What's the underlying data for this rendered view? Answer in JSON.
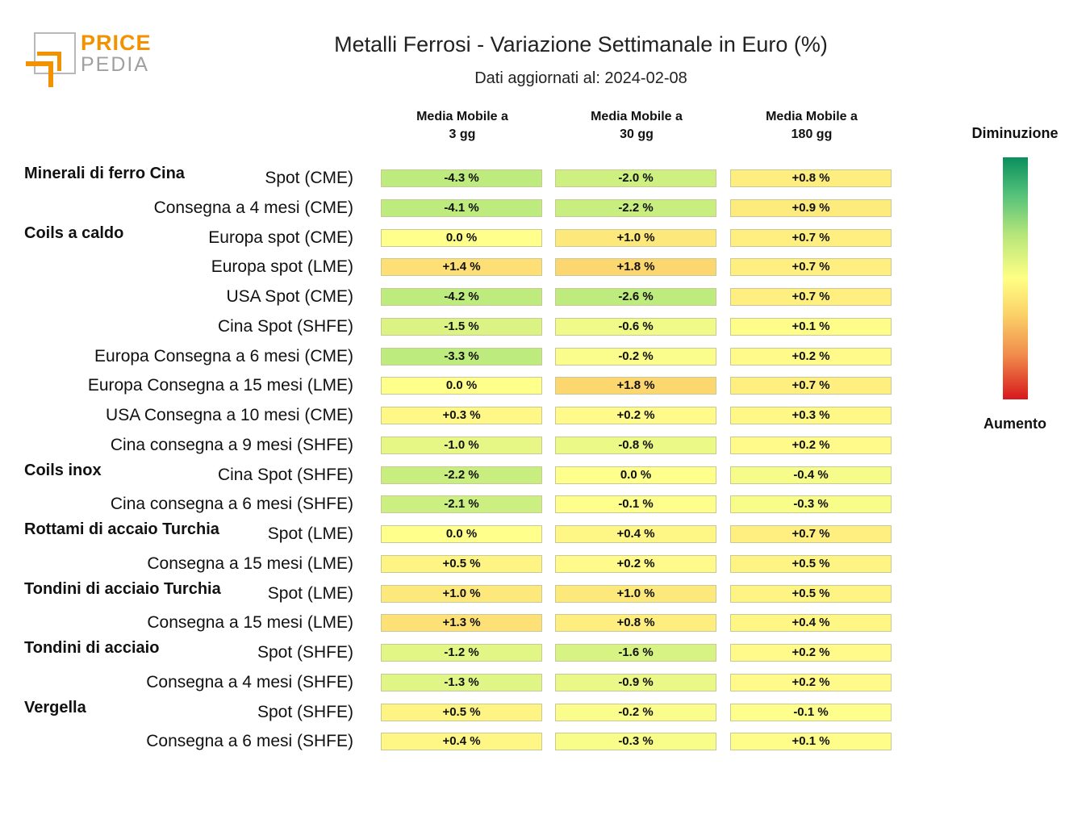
{
  "logo": {
    "price": "PRICE",
    "pedia": "PEDIA"
  },
  "title": "Metalli Ferrosi - Variazione Settimanale in Euro (%)",
  "subtitle": "Dati aggiornati al: 2024-02-08",
  "legend": {
    "top": "Diminuzione",
    "bottom": "Aumento",
    "colors": [
      "#0a8f5c",
      "#b6e67a",
      "#ffff84",
      "#f08a4b",
      "#d7191c"
    ]
  },
  "chart_data": {
    "type": "heatmap",
    "columns": [
      {
        "line1": "Media Mobile a",
        "line2": "3 gg"
      },
      {
        "line1": "Media Mobile a",
        "line2": "30 gg"
      },
      {
        "line1": "Media Mobile a",
        "line2": "180 gg"
      }
    ],
    "rows": [
      {
        "group": "Minerali di ferro Cina",
        "label": "Spot (CME)",
        "values": [
          -4.3,
          -2.0,
          0.8
        ],
        "labels": [
          "-4.3 %",
          "-2.0 %",
          "+0.8 %"
        ]
      },
      {
        "group": "",
        "label": "Consegna a 4 mesi (CME)",
        "values": [
          -4.1,
          -2.2,
          0.9
        ],
        "labels": [
          "-4.1 %",
          "-2.2 %",
          "+0.9 %"
        ]
      },
      {
        "group": "Coils a caldo",
        "label": "Europa spot (CME)",
        "values": [
          0.0,
          1.0,
          0.7
        ],
        "labels": [
          "0.0 %",
          "+1.0 %",
          "+0.7 %"
        ]
      },
      {
        "group": "",
        "label": "Europa spot (LME)",
        "values": [
          1.4,
          1.8,
          0.7
        ],
        "labels": [
          "+1.4 %",
          "+1.8 %",
          "+0.7 %"
        ]
      },
      {
        "group": "",
        "label": "USA Spot (CME)",
        "values": [
          -4.2,
          -2.6,
          0.7
        ],
        "labels": [
          "-4.2 %",
          "-2.6 %",
          "+0.7 %"
        ]
      },
      {
        "group": "",
        "label": "Cina Spot (SHFE)",
        "values": [
          -1.5,
          -0.6,
          0.1
        ],
        "labels": [
          "-1.5 %",
          "-0.6 %",
          "+0.1 %"
        ]
      },
      {
        "group": "",
        "label": "Europa Consegna a 6 mesi (CME)",
        "values": [
          -3.3,
          -0.2,
          0.2
        ],
        "labels": [
          "-3.3 %",
          "-0.2 %",
          "+0.2 %"
        ]
      },
      {
        "group": "",
        "label": "Europa Consegna a 15 mesi (LME)",
        "values": [
          0.0,
          1.8,
          0.7
        ],
        "labels": [
          "0.0 %",
          "+1.8 %",
          "+0.7 %"
        ]
      },
      {
        "group": "",
        "label": "USA Consegna a 10 mesi (CME)",
        "values": [
          0.3,
          0.2,
          0.3
        ],
        "labels": [
          "+0.3 %",
          "+0.2 %",
          "+0.3 %"
        ]
      },
      {
        "group": "",
        "label": "Cina consegna a 9 mesi (SHFE)",
        "values": [
          -1.0,
          -0.8,
          0.2
        ],
        "labels": [
          "-1.0 %",
          "-0.8 %",
          "+0.2 %"
        ]
      },
      {
        "group": "Coils inox",
        "label": "Cina Spot (SHFE)",
        "values": [
          -2.2,
          0.0,
          -0.4
        ],
        "labels": [
          "-2.2 %",
          "0.0 %",
          "-0.4 %"
        ]
      },
      {
        "group": "",
        "label": "Cina consegna a 6 mesi (SHFE)",
        "values": [
          -2.1,
          -0.1,
          -0.3
        ],
        "labels": [
          "-2.1 %",
          "-0.1 %",
          "-0.3 %"
        ]
      },
      {
        "group": "Rottami di accaio Turchia",
        "label": "Spot (LME)",
        "values": [
          0.0,
          0.4,
          0.7
        ],
        "labels": [
          "0.0 %",
          "+0.4 %",
          "+0.7 %"
        ]
      },
      {
        "group": "",
        "label": "Consegna a 15 mesi (LME)",
        "values": [
          0.5,
          0.2,
          0.5
        ],
        "labels": [
          "+0.5 %",
          "+0.2 %",
          "+0.5 %"
        ]
      },
      {
        "group": "Tondini di acciaio Turchia",
        "label": "Spot (LME)",
        "values": [
          1.0,
          1.0,
          0.5
        ],
        "labels": [
          "+1.0 %",
          "+1.0 %",
          "+0.5 %"
        ]
      },
      {
        "group": "",
        "label": "Consegna a 15 mesi (LME)",
        "values": [
          1.3,
          0.8,
          0.4
        ],
        "labels": [
          "+1.3 %",
          "+0.8 %",
          "+0.4 %"
        ]
      },
      {
        "group": "Tondini di acciaio",
        "label": "Spot (SHFE)",
        "values": [
          -1.2,
          -1.6,
          0.2
        ],
        "labels": [
          "-1.2 %",
          "-1.6 %",
          "+0.2 %"
        ]
      },
      {
        "group": "",
        "label": "Consegna a 4 mesi (SHFE)",
        "values": [
          -1.3,
          -0.9,
          0.2
        ],
        "labels": [
          "-1.3 %",
          "-0.9 %",
          "+0.2 %"
        ]
      },
      {
        "group": "Vergella",
        "label": "Spot (SHFE)",
        "values": [
          0.5,
          -0.2,
          -0.1
        ],
        "labels": [
          "+0.5 %",
          "-0.2 %",
          "-0.1 %"
        ]
      },
      {
        "group": "",
        "label": "Consegna a 6 mesi (SHFE)",
        "values": [
          0.4,
          -0.3,
          0.1
        ],
        "labels": [
          "+0.4 %",
          "-0.3 %",
          "+0.1 %"
        ]
      }
    ]
  }
}
